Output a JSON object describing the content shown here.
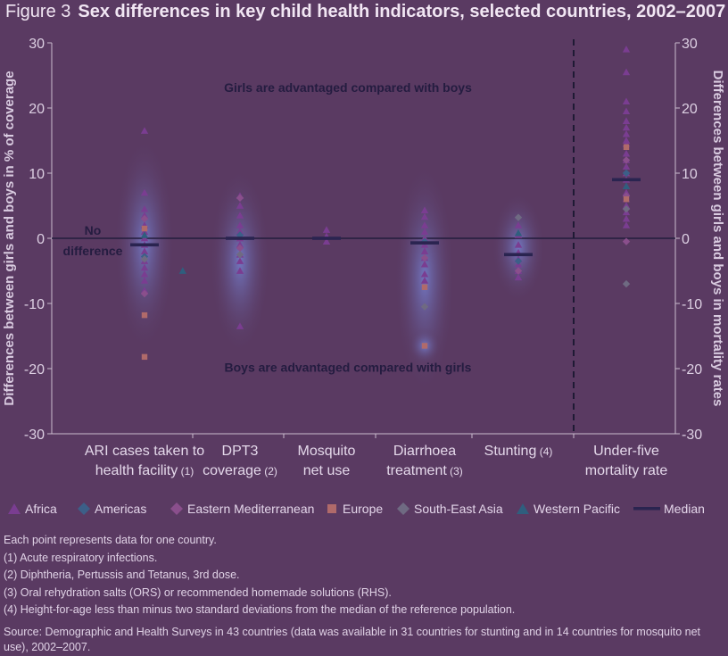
{
  "figure": {
    "number": "Figure 3",
    "title": "Sex differences in key child health indicators, selected countries, 2002–2007"
  },
  "chart_data": {
    "type": "scatter",
    "title": "Sex differences in key child health indicators, selected countries, 2002–2007",
    "ylabel_left": "Differences between girls and boys in % of coverage",
    "ylabel_right": "Differences between girls and boys in mortality rates",
    "ylim": [
      -30,
      30
    ],
    "yticks": [
      30,
      20,
      10,
      0,
      -10,
      -20,
      -30
    ],
    "categories": [
      {
        "line1": "ARI cases taken to",
        "line2": "health facility",
        "note": "(1)"
      },
      {
        "line1": "DPT3",
        "line2": "coverage",
        "note": "(2)"
      },
      {
        "line1": "Mosquito",
        "line2": "net use",
        "note": ""
      },
      {
        "line1": "Diarrhoea",
        "line2": "treatment",
        "note": "(3)"
      },
      {
        "line1": "Stunting",
        "line2": "",
        "note": "(4)"
      },
      {
        "line1": "Under-five",
        "line2": "mortality rate",
        "note": ""
      }
    ],
    "annotations": {
      "top": "Girls are advantaged compared with boys",
      "bottom": "Boys are advantaged compared with girls",
      "zero_line1": "No",
      "zero_line2": "difference"
    },
    "medians": [
      -1,
      0,
      0,
      -0.7,
      -2.5,
      9
    ],
    "series": [
      {
        "name": "Africa",
        "marker": "triangle",
        "color": "#7a3d91",
        "points": [
          [
            0,
            16.5
          ],
          [
            0,
            7
          ],
          [
            0,
            4.5
          ],
          [
            0,
            3.5
          ],
          [
            0,
            2
          ],
          [
            0,
            1
          ],
          [
            0,
            0
          ],
          [
            0,
            -1
          ],
          [
            0,
            -2
          ],
          [
            0,
            -3.5
          ],
          [
            0,
            -4.5
          ],
          [
            0,
            -5.5
          ],
          [
            0,
            -6.5
          ],
          [
            0,
            -8
          ],
          [
            1,
            6.5
          ],
          [
            1,
            5
          ],
          [
            1,
            3.5
          ],
          [
            1,
            2
          ],
          [
            1,
            1
          ],
          [
            1,
            0
          ],
          [
            1,
            -1
          ],
          [
            1,
            -2.5
          ],
          [
            1,
            -3.5
          ],
          [
            1,
            -5
          ],
          [
            1,
            -13.5
          ],
          [
            2,
            1.3
          ],
          [
            2,
            0.3
          ],
          [
            2,
            -0.5
          ],
          [
            3,
            4.3
          ],
          [
            3,
            3.3
          ],
          [
            3,
            2
          ],
          [
            3,
            1
          ],
          [
            3,
            0
          ],
          [
            3,
            -1
          ],
          [
            3,
            -2
          ],
          [
            3,
            -3
          ],
          [
            3,
            -4
          ],
          [
            3,
            -5.5
          ],
          [
            3,
            -6.5
          ],
          [
            4,
            2
          ],
          [
            4,
            0.5
          ],
          [
            4,
            -1
          ],
          [
            4,
            -2.2
          ],
          [
            4,
            -3.2
          ],
          [
            4,
            -4
          ],
          [
            4,
            -5
          ],
          [
            4,
            -6
          ],
          [
            5,
            29
          ],
          [
            5,
            25.5
          ],
          [
            5,
            21
          ],
          [
            5,
            19.5
          ],
          [
            5,
            18
          ],
          [
            5,
            17
          ],
          [
            5,
            16
          ],
          [
            5,
            15
          ],
          [
            5,
            14.5
          ],
          [
            5,
            13
          ],
          [
            5,
            12
          ],
          [
            5,
            11
          ],
          [
            5,
            10
          ],
          [
            5,
            9
          ],
          [
            5,
            8
          ],
          [
            5,
            7
          ],
          [
            5,
            6
          ],
          [
            5,
            5
          ],
          [
            5,
            4
          ],
          [
            5,
            3
          ],
          [
            5,
            2
          ]
        ]
      },
      {
        "name": "Americas",
        "marker": "diamond",
        "color": "#3c5f88",
        "points": [
          [
            0,
            -2.8
          ],
          [
            1,
            0.5
          ],
          [
            3,
            -0.5
          ],
          [
            4,
            -3.5
          ],
          [
            5,
            10
          ]
        ]
      },
      {
        "name": "Eastern Mediterranean",
        "marker": "diamond",
        "color": "#8a4f8c",
        "points": [
          [
            0,
            -8.5
          ],
          [
            0,
            3
          ],
          [
            1,
            6.2
          ],
          [
            1,
            -1.5
          ],
          [
            3,
            -3
          ],
          [
            4,
            -5
          ],
          [
            5,
            6.5
          ],
          [
            5,
            12
          ],
          [
            5,
            -0.5
          ]
        ]
      },
      {
        "name": "Europe",
        "marker": "square",
        "color": "#b06a6a",
        "points": [
          [
            0,
            -11.8
          ],
          [
            0,
            -18.2
          ],
          [
            0,
            1.5
          ],
          [
            3,
            -7.5
          ],
          [
            3,
            -16.5
          ],
          [
            5,
            6
          ],
          [
            5,
            14
          ]
        ]
      },
      {
        "name": "South-East Asia",
        "marker": "diamond",
        "color": "#6f6a82",
        "points": [
          [
            0,
            -3.2
          ],
          [
            1,
            -2.5
          ],
          [
            3,
            -10.5
          ],
          [
            4,
            3.2
          ],
          [
            5,
            -7
          ],
          [
            5,
            4.5
          ]
        ]
      },
      {
        "name": "Western Pacific",
        "marker": "triangle",
        "color": "#2f5e7e",
        "points": [
          [
            0,
            0.5
          ],
          [
            0.4,
            -5
          ],
          [
            4,
            0.8
          ],
          [
            5,
            8
          ]
        ]
      }
    ],
    "median_legend": "Median",
    "grid": false
  },
  "notes": {
    "intro": "Each point represents data for one country.",
    "n1_num": "(1)",
    "n1": "Acute respiratory infections.",
    "n2_num": "(2)",
    "n2": "Diphtheria, Pertussis and Tetanus, 3rd dose.",
    "n3_num": "(3)",
    "n3": "Oral rehydration salts (ORS) or recommended homemade solutions (RHS).",
    "n4_num": "(4)",
    "n4": "Height-for-age less than minus two standard deviations from the median of the reference population.",
    "source": "Source: Demographic and Health Surveys in 43 countries (data was available in 31 countries for stunting and in 14 countries for mosquito net use), 2002–2007."
  }
}
